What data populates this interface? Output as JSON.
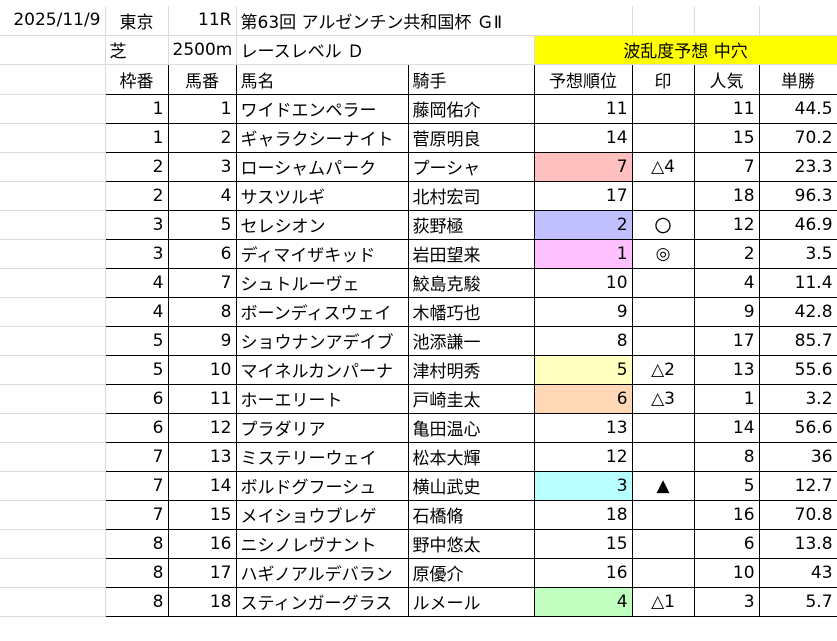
{
  "header": {
    "date": "2025/11/9",
    "venue": "東京",
    "race_no": "11R",
    "race_name": "第63回 アルゼンチン共和国杯 ＧⅡ",
    "surface": "芝",
    "distance": "2500m",
    "level": "レースレベル Ｄ",
    "forecast": "波乱度予想 中穴"
  },
  "columns": [
    "枠番",
    "馬番",
    "馬名",
    "騎手",
    "予想順位",
    "印",
    "人気",
    "単勝"
  ],
  "colors": {
    "highlight_yellow": "#ffff00",
    "rank_7": "#ffc0c0",
    "rank_2": "#c0c0ff",
    "rank_1": "#ffc0ff",
    "rank_5": "#ffffc0",
    "rank_6": "#ffd8b8",
    "rank_3": "#b8ffff",
    "rank_4": "#c0ffc0"
  },
  "rows": [
    {
      "waku": "1",
      "uma": "1",
      "name": "ワイドエンペラー",
      "jockey": "藤岡佑介",
      "rank": "11",
      "mark": "",
      "pop": "11",
      "odds": "44.5",
      "color": ""
    },
    {
      "waku": "1",
      "uma": "2",
      "name": "ギャラクシーナイト",
      "jockey": "菅原明良",
      "rank": "14",
      "mark": "",
      "pop": "15",
      "odds": "70.2",
      "color": ""
    },
    {
      "waku": "2",
      "uma": "3",
      "name": "ローシャムパーク",
      "jockey": "プーシャ",
      "rank": "7",
      "mark": "△4",
      "pop": "7",
      "odds": "23.3",
      "color": "#ffc0c0"
    },
    {
      "waku": "2",
      "uma": "4",
      "name": "サスツルギ",
      "jockey": "北村宏司",
      "rank": "17",
      "mark": "",
      "pop": "18",
      "odds": "96.3",
      "color": ""
    },
    {
      "waku": "3",
      "uma": "5",
      "name": "セレシオン",
      "jockey": "荻野極",
      "rank": "2",
      "mark": "〇",
      "pop": "12",
      "odds": "46.9",
      "color": "#c0c0ff"
    },
    {
      "waku": "3",
      "uma": "6",
      "name": "ディマイザキッド",
      "jockey": "岩田望来",
      "rank": "1",
      "mark": "◎",
      "pop": "2",
      "odds": "3.5",
      "color": "#ffc0ff"
    },
    {
      "waku": "4",
      "uma": "7",
      "name": "シュトルーヴェ",
      "jockey": "鮫島克駿",
      "rank": "10",
      "mark": "",
      "pop": "4",
      "odds": "11.4",
      "color": ""
    },
    {
      "waku": "4",
      "uma": "8",
      "name": "ボーンディスウェイ",
      "jockey": "木幡巧也",
      "rank": "9",
      "mark": "",
      "pop": "9",
      "odds": "42.8",
      "color": ""
    },
    {
      "waku": "5",
      "uma": "9",
      "name": "ショウナンアデイブ",
      "jockey": "池添謙一",
      "rank": "8",
      "mark": "",
      "pop": "17",
      "odds": "85.7",
      "color": ""
    },
    {
      "waku": "5",
      "uma": "10",
      "name": "マイネルカンパーナ",
      "jockey": "津村明秀",
      "rank": "5",
      "mark": "△2",
      "pop": "13",
      "odds": "55.6",
      "color": "#ffffc0"
    },
    {
      "waku": "6",
      "uma": "11",
      "name": "ホーエリート",
      "jockey": "戸崎圭太",
      "rank": "6",
      "mark": "△3",
      "pop": "1",
      "odds": "3.2",
      "color": "#ffd8b8"
    },
    {
      "waku": "6",
      "uma": "12",
      "name": "プラダリア",
      "jockey": "亀田温心",
      "rank": "13",
      "mark": "",
      "pop": "14",
      "odds": "56.6",
      "color": ""
    },
    {
      "waku": "7",
      "uma": "13",
      "name": "ミステリーウェイ",
      "jockey": "松本大輝",
      "rank": "12",
      "mark": "",
      "pop": "8",
      "odds": "36",
      "color": ""
    },
    {
      "waku": "7",
      "uma": "14",
      "name": "ボルドグフーシュ",
      "jockey": "横山武史",
      "rank": "3",
      "mark": "▲",
      "pop": "5",
      "odds": "12.7",
      "color": "#b8ffff"
    },
    {
      "waku": "7",
      "uma": "15",
      "name": "メイショウブレゲ",
      "jockey": "石橋脩",
      "rank": "18",
      "mark": "",
      "pop": "16",
      "odds": "70.8",
      "color": ""
    },
    {
      "waku": "8",
      "uma": "16",
      "name": "ニシノレヴナント",
      "jockey": "野中悠太",
      "rank": "15",
      "mark": "",
      "pop": "6",
      "odds": "13.8",
      "color": ""
    },
    {
      "waku": "8",
      "uma": "17",
      "name": "ハギノアルデバラン",
      "jockey": "原優介",
      "rank": "16",
      "mark": "",
      "pop": "10",
      "odds": "43",
      "color": ""
    },
    {
      "waku": "8",
      "uma": "18",
      "name": "スティンガーグラス",
      "jockey": "ルメール",
      "rank": "4",
      "mark": "△1",
      "pop": "3",
      "odds": "5.7",
      "color": "#c0ffc0"
    }
  ]
}
